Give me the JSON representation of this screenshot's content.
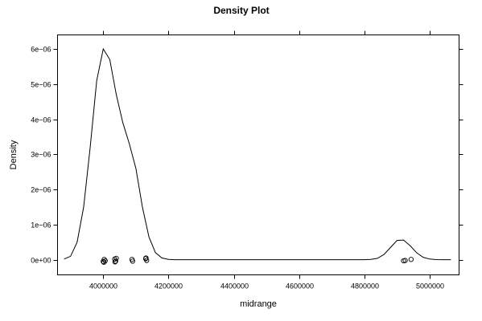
{
  "chart_data": {
    "type": "line",
    "title": "Density Plot",
    "xlabel": "midrange",
    "ylabel": "Density",
    "xlim": [
      3860000,
      5090000
    ],
    "ylim": [
      -4.3e-07,
      6.4e-06
    ],
    "x_ticks": [
      {
        "value": 4000000,
        "label": "4000000"
      },
      {
        "value": 4200000,
        "label": "4200000"
      },
      {
        "value": 4400000,
        "label": "4400000"
      },
      {
        "value": 4600000,
        "label": "4600000"
      },
      {
        "value": 4800000,
        "label": "4800000"
      },
      {
        "value": 5000000,
        "label": "5000000"
      }
    ],
    "y_ticks": [
      {
        "value": 0,
        "label": "0e+00"
      },
      {
        "value": 1e-06,
        "label": "1e−06"
      },
      {
        "value": 2e-06,
        "label": "2e−06"
      },
      {
        "value": 3e-06,
        "label": "3e−06"
      },
      {
        "value": 4e-06,
        "label": "4e−06"
      },
      {
        "value": 5e-06,
        "label": "5e−06"
      },
      {
        "value": 6e-06,
        "label": "6e−06"
      }
    ],
    "grid": false,
    "series": [
      {
        "x": [
          3880000,
          3900000,
          3920000,
          3940000,
          3960000,
          3980000,
          4000000,
          4020000,
          4040000,
          4060000,
          4080000,
          4100000,
          4120000,
          4140000,
          4160000,
          4180000,
          4200000,
          4220000,
          4240000,
          4260000,
          4280000,
          4300000,
          4400000,
          4500000,
          4600000,
          4700000,
          4780000,
          4800000,
          4820000,
          4840000,
          4860000,
          4880000,
          4900000,
          4920000,
          4940000,
          4960000,
          4980000,
          5000000,
          5020000,
          5040000,
          5065000
        ],
        "y": [
          2e-08,
          1e-07,
          5e-07,
          1.5e-06,
          3.2e-06,
          5.1e-06,
          6e-06,
          5.7e-06,
          4.7e-06,
          3.9e-06,
          3.3e-06,
          2.6e-06,
          1.5e-06,
          6.5e-07,
          2e-07,
          5e-08,
          1e-08,
          0,
          0,
          0,
          0,
          0,
          0,
          0,
          0,
          0,
          0,
          0,
          1e-08,
          4e-08,
          1.5e-07,
          3.5e-07,
          5.5e-07,
          5.6e-07,
          4e-07,
          2e-07,
          7e-08,
          2e-08,
          5e-09,
          0,
          0
        ]
      }
    ],
    "rug_points": [
      {
        "x": 4000000,
        "y": -5e-08
      },
      {
        "x": 4003000,
        "y": 1e-08
      },
      {
        "x": 4006000,
        "y": -3e-08
      },
      {
        "x": 4002000,
        "y": -7e-08
      },
      {
        "x": 4035000,
        "y": 2e-08
      },
      {
        "x": 4038000,
        "y": -4e-08
      },
      {
        "x": 4040000,
        "y": 4e-08
      },
      {
        "x": 4036000,
        "y": -6e-08
      },
      {
        "x": 4088000,
        "y": 1e-08
      },
      {
        "x": 4090000,
        "y": -4e-08
      },
      {
        "x": 4130000,
        "y": 3e-08
      },
      {
        "x": 4133000,
        "y": -2e-08
      },
      {
        "x": 4131000,
        "y": 5e-08
      },
      {
        "x": 4920000,
        "y": -3e-08
      },
      {
        "x": 4925000,
        "y": -2e-08
      },
      {
        "x": 4943000,
        "y": 1e-08
      }
    ]
  }
}
